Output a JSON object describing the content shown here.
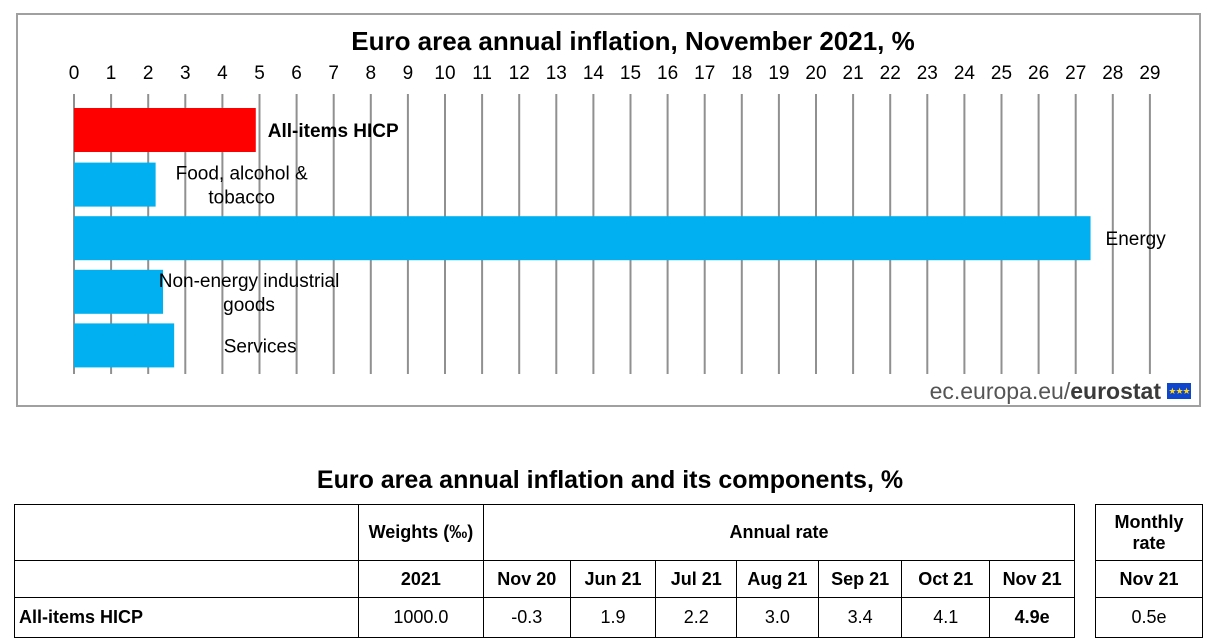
{
  "chart_data": {
    "type": "bar",
    "orientation": "horizontal",
    "title": "Euro area annual inflation, November 2021, %",
    "xlim": [
      0,
      29
    ],
    "ticks": [
      0,
      1,
      2,
      3,
      4,
      5,
      6,
      7,
      8,
      9,
      10,
      11,
      12,
      13,
      14,
      15,
      16,
      17,
      18,
      19,
      20,
      21,
      22,
      23,
      24,
      25,
      26,
      27,
      28,
      29
    ],
    "grid": "vertical",
    "categories": [
      "All-items HICP",
      "Food, alcohol & tobacco",
      "Energy",
      "Non-energy industrial goods",
      "Services"
    ],
    "category_lines": [
      [
        "All-items HICP"
      ],
      [
        "Food, alcohol &",
        "tobacco"
      ],
      [
        "Energy"
      ],
      [
        "Non-energy industrial",
        "goods"
      ],
      [
        "Services"
      ]
    ],
    "values": [
      4.9,
      2.2,
      27.4,
      2.4,
      2.7
    ],
    "bar_colors": [
      "#ff0000",
      "#00b0f0",
      "#00b0f0",
      "#00b0f0",
      "#00b0f0"
    ],
    "source": "ec.europa.eu/eurostat"
  },
  "credit": {
    "prefix": "ec.europa.eu/",
    "brand": "eurostat"
  },
  "table": {
    "title": "Euro area annual inflation and its components, %",
    "weights_header": "Weights (‰)",
    "annual_rate_header": "Annual rate",
    "monthly_rate_header": "Monthly rate",
    "weights_year": "2021",
    "months": [
      "Nov 20",
      "Jun 21",
      "Jul 21",
      "Aug 21",
      "Sep 21",
      "Oct 21",
      "Nov 21"
    ],
    "monthly_month": "Nov 21",
    "rows": [
      {
        "label": "All-items HICP",
        "weight": "1000.0",
        "rates": [
          "-0.3",
          "1.9",
          "2.2",
          "3.0",
          "3.4",
          "4.1",
          "4.9e"
        ],
        "monthly": "0.5e"
      }
    ]
  }
}
